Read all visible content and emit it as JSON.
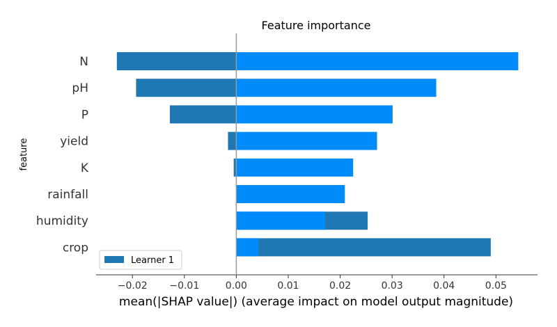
{
  "chart_data": {
    "type": "bar",
    "orientation": "horizontal",
    "title": "Feature importance",
    "xlabel": "mean(|SHAP value|) (average impact on model output magnitude)",
    "ylabel": "feature",
    "categories": [
      "N",
      "pH",
      "P",
      "yield",
      "K",
      "rainfall",
      "humidity",
      "crop"
    ],
    "xlim": [
      -0.027,
      0.058
    ],
    "xticks": [
      "−0.02",
      "−0.01",
      "0.00",
      "0.01",
      "0.02",
      "0.03",
      "0.04",
      "0.05"
    ],
    "xtick_values": [
      -0.02,
      -0.01,
      0.0,
      0.01,
      0.02,
      0.03,
      0.04,
      0.05
    ],
    "series": [
      {
        "name": "Learner 1",
        "color": "#1f77b4",
        "values": [
          -0.023,
          -0.0193,
          -0.0128,
          -0.0016,
          -0.0005,
          0.0,
          0.0253,
          0.049
        ]
      },
      {
        "color": "#008bfb",
        "values": [
          0.0543,
          0.0385,
          0.0301,
          0.0271,
          0.0225,
          0.0209,
          0.0171,
          0.0043
        ]
      }
    ],
    "legend": {
      "position": "bottom-left",
      "entries": [
        "Learner 1"
      ]
    },
    "grid": false
  }
}
